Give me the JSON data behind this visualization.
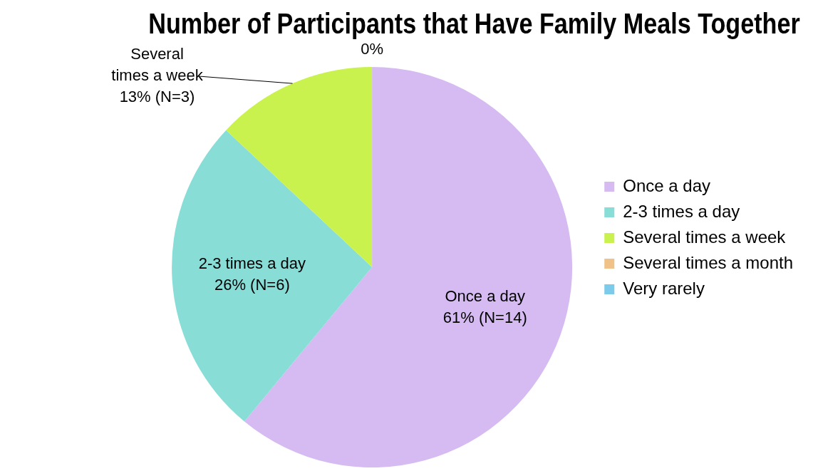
{
  "chart_data": {
    "type": "pie",
    "title": "Number of Participants that Have Family Meals Together",
    "categories": [
      "Once a day",
      "2-3 times a day",
      "Several times a week",
      "Several times a month",
      "Very rarely"
    ],
    "values": [
      61,
      26,
      13,
      0,
      0
    ],
    "colors": [
      "#d5bbf1",
      "#88ddd7",
      "#c9f24f",
      "#f0c288",
      "#7ccbea"
    ],
    "value_labels": [
      "61% (N=14)",
      "26% (N=6)",
      "13% (N=3)",
      "0%",
      null
    ],
    "legend": "right"
  }
}
